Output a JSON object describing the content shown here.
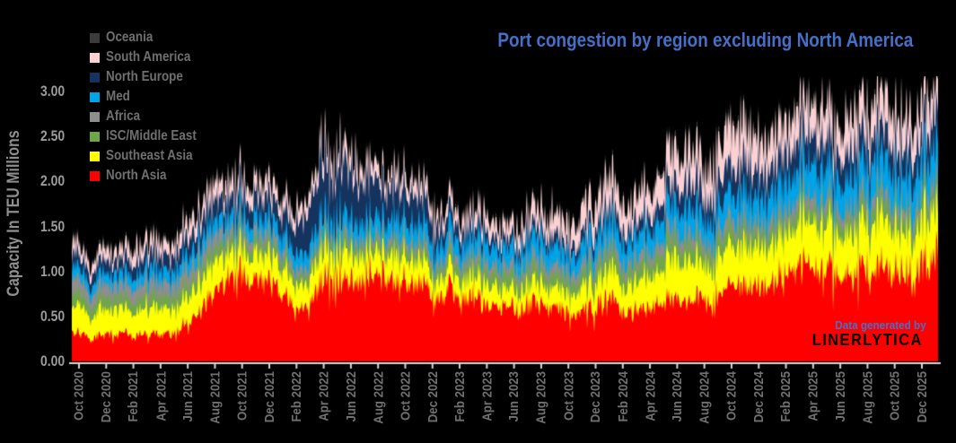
{
  "title": "Port congestion by region excluding North America",
  "watermark": {
    "line1": "Data generated by",
    "line2": "LINERLYTICA"
  },
  "y_axis": {
    "title": "Capacity In TEU Millions",
    "ticks": [
      "0.00",
      "0.50",
      "1.00",
      "1.50",
      "2.00",
      "2.50",
      "3.00"
    ],
    "tick_text_color": "#9b9b9b"
  },
  "x_axis": {
    "tick_labels": [
      "Oct 2020",
      "Dec 2020",
      "Feb 2021",
      "Apr 2021",
      "Jun 2021",
      "Aug 2021",
      "Oct 2021",
      "Dec 2021",
      "Feb 2022",
      "Apr 2022",
      "Jun 2022",
      "Aug 2022",
      "Oct 2022",
      "Dec 2022",
      "Feb 2023",
      "Apr 2023",
      "Jun 2023",
      "Aug 2023",
      "Oct 2023",
      "Dec 2023",
      "Feb 2024",
      "Apr 2024",
      "Jun 2024",
      "Aug 2024",
      "Oct 2024",
      "Dec 2024",
      "Feb 2025",
      "Apr 2025",
      "Jun 2025",
      "Aug 2025",
      "Oct 2025",
      "Dec 2025"
    ],
    "tick_text_color": "#707070",
    "axis_line_color": "#d8d8d8"
  },
  "legend": {
    "position": "top-left",
    "items": [
      {
        "label": "Oceania",
        "color": "#3c3c3c"
      },
      {
        "label": "South America",
        "color": "#fbd1d4"
      },
      {
        "label": "North Europe",
        "color": "#14335e"
      },
      {
        "label": "Med",
        "color": "#00a3e6"
      },
      {
        "label": "Africa",
        "color": "#8e8e8e"
      },
      {
        "label": "ISC/Middle East",
        "color": "#70a64a"
      },
      {
        "label": "Southeast Asia",
        "color": "#ffff00"
      },
      {
        "label": "North Asia",
        "color": "#ff0000"
      }
    ]
  },
  "colors": {
    "background": "#000000",
    "title": "#4470c8",
    "watermark_blue": "#4a6fc9",
    "watermark_black": "#000000",
    "axis_line": "#d8d8d8"
  },
  "chart_data": {
    "type": "area",
    "stacked": true,
    "title": "Port congestion by region excluding North America",
    "xlabel": "",
    "ylabel": "Capacity In TEU Millions",
    "ylim": [
      0,
      3.25
    ],
    "grid": false,
    "legend_position": "top-left",
    "stack_order": "bottom-to-top",
    "granularity": "monthly means of noisy daily observations",
    "months": [
      "Oct 2020",
      "Nov 2020",
      "Dec 2020",
      "Jan 2021",
      "Feb 2021",
      "Mar 2021",
      "Apr 2021",
      "May 2021",
      "Jun 2021",
      "Jul 2021",
      "Aug 2021",
      "Sep 2021",
      "Oct 2021",
      "Nov 2021",
      "Dec 2021",
      "Jan 2022",
      "Feb 2022",
      "Mar 2022",
      "Apr 2022",
      "May 2022",
      "Jun 2022",
      "Jul 2022",
      "Aug 2022",
      "Sep 2022",
      "Oct 2022",
      "Nov 2022",
      "Dec 2022",
      "Jan 2023",
      "Feb 2023",
      "Mar 2023",
      "Apr 2023",
      "May 2023",
      "Jun 2023",
      "Jul 2023",
      "Aug 2023",
      "Sep 2023",
      "Oct 2023",
      "Nov 2023",
      "Dec 2023",
      "Jan 2024",
      "Feb 2024",
      "Mar 2024",
      "Apr 2024",
      "May 2024",
      "Jun 2024",
      "Jul 2024",
      "Aug 2024",
      "Sep 2024",
      "Oct 2024",
      "Nov 2024",
      "Dec 2024",
      "Jan 2025",
      "Feb 2025",
      "Mar 2025",
      "Apr 2025",
      "May 2025",
      "Jun 2025",
      "Jul 2025",
      "Aug 2025",
      "Sep 2025",
      "Oct 2025",
      "Nov 2025",
      "Dec 2025"
    ],
    "series": [
      {
        "name": "North Asia",
        "color": "#ff0000",
        "values": [
          0.3,
          0.26,
          0.29,
          0.31,
          0.26,
          0.28,
          0.3,
          0.33,
          0.42,
          0.55,
          0.72,
          0.92,
          1.02,
          0.92,
          0.85,
          0.72,
          0.58,
          0.7,
          0.92,
          0.95,
          0.85,
          1.0,
          1.02,
          0.88,
          0.82,
          0.78,
          0.78,
          0.82,
          0.68,
          0.64,
          0.6,
          0.64,
          0.62,
          0.6,
          0.58,
          0.58,
          0.55,
          0.56,
          0.6,
          0.62,
          0.55,
          0.58,
          0.6,
          0.63,
          0.65,
          0.68,
          0.68,
          0.72,
          0.78,
          0.74,
          0.82,
          0.95,
          1.0,
          0.95,
          0.96,
          1.0,
          0.94,
          0.95,
          0.98,
          1.0,
          1.05,
          1.02,
          1.08
        ]
      },
      {
        "name": "Southeast Asia",
        "color": "#ffff00",
        "values": [
          0.26,
          0.24,
          0.26,
          0.27,
          0.25,
          0.27,
          0.28,
          0.29,
          0.3,
          0.3,
          0.3,
          0.3,
          0.28,
          0.28,
          0.27,
          0.28,
          0.27,
          0.3,
          0.32,
          0.3,
          0.28,
          0.28,
          0.27,
          0.25,
          0.24,
          0.23,
          0.22,
          0.22,
          0.2,
          0.2,
          0.21,
          0.21,
          0.2,
          0.21,
          0.21,
          0.22,
          0.23,
          0.25,
          0.27,
          0.3,
          0.3,
          0.33,
          0.34,
          0.37,
          0.42,
          0.44,
          0.4,
          0.4,
          0.42,
          0.4,
          0.42,
          0.44,
          0.45,
          0.44,
          0.46,
          0.48,
          0.45,
          0.46,
          0.48,
          0.5,
          0.52,
          0.46,
          0.48
        ]
      },
      {
        "name": "ISC/Middle East",
        "color": "#70a64a",
        "values": [
          0.13,
          0.12,
          0.13,
          0.13,
          0.12,
          0.13,
          0.13,
          0.14,
          0.14,
          0.14,
          0.14,
          0.13,
          0.12,
          0.12,
          0.12,
          0.11,
          0.1,
          0.11,
          0.11,
          0.11,
          0.1,
          0.11,
          0.11,
          0.11,
          0.11,
          0.11,
          0.11,
          0.12,
          0.12,
          0.13,
          0.14,
          0.15,
          0.15,
          0.15,
          0.14,
          0.14,
          0.14,
          0.15,
          0.15,
          0.16,
          0.16,
          0.17,
          0.17,
          0.17,
          0.18,
          0.18,
          0.17,
          0.17,
          0.17,
          0.16,
          0.16,
          0.16,
          0.15,
          0.15,
          0.15,
          0.16,
          0.15,
          0.15,
          0.15,
          0.16,
          0.16,
          0.15,
          0.15
        ]
      },
      {
        "name": "Africa",
        "color": "#8e8e8e",
        "values": [
          0.15,
          0.14,
          0.15,
          0.15,
          0.14,
          0.15,
          0.15,
          0.16,
          0.16,
          0.15,
          0.15,
          0.14,
          0.13,
          0.12,
          0.12,
          0.1,
          0.09,
          0.09,
          0.09,
          0.09,
          0.08,
          0.09,
          0.09,
          0.09,
          0.09,
          0.09,
          0.09,
          0.1,
          0.1,
          0.1,
          0.1,
          0.11,
          0.11,
          0.11,
          0.11,
          0.11,
          0.11,
          0.11,
          0.11,
          0.11,
          0.11,
          0.12,
          0.12,
          0.12,
          0.12,
          0.13,
          0.12,
          0.12,
          0.12,
          0.12,
          0.12,
          0.13,
          0.13,
          0.13,
          0.13,
          0.13,
          0.12,
          0.13,
          0.13,
          0.13,
          0.14,
          0.13,
          0.13
        ]
      },
      {
        "name": "Med",
        "color": "#00a3e6",
        "values": [
          0.12,
          0.11,
          0.12,
          0.13,
          0.12,
          0.13,
          0.14,
          0.14,
          0.15,
          0.15,
          0.16,
          0.16,
          0.16,
          0.16,
          0.16,
          0.17,
          0.17,
          0.19,
          0.2,
          0.2,
          0.19,
          0.2,
          0.2,
          0.2,
          0.2,
          0.19,
          0.19,
          0.19,
          0.18,
          0.18,
          0.19,
          0.2,
          0.2,
          0.2,
          0.2,
          0.2,
          0.2,
          0.21,
          0.22,
          0.23,
          0.23,
          0.24,
          0.24,
          0.25,
          0.26,
          0.27,
          0.26,
          0.26,
          0.27,
          0.27,
          0.28,
          0.3,
          0.32,
          0.32,
          0.33,
          0.34,
          0.33,
          0.34,
          0.35,
          0.36,
          0.37,
          0.35,
          0.36
        ]
      },
      {
        "name": "North Europe",
        "color": "#14335e",
        "values": [
          0.13,
          0.12,
          0.13,
          0.14,
          0.14,
          0.15,
          0.16,
          0.17,
          0.18,
          0.19,
          0.2,
          0.21,
          0.22,
          0.22,
          0.21,
          0.22,
          0.3,
          0.48,
          0.55,
          0.52,
          0.48,
          0.45,
          0.4,
          0.32,
          0.3,
          0.28,
          0.24,
          0.18,
          0.14,
          0.12,
          0.11,
          0.11,
          0.1,
          0.1,
          0.1,
          0.11,
          0.11,
          0.12,
          0.13,
          0.15,
          0.14,
          0.15,
          0.16,
          0.18,
          0.22,
          0.26,
          0.26,
          0.27,
          0.28,
          0.28,
          0.28,
          0.29,
          0.3,
          0.3,
          0.3,
          0.3,
          0.28,
          0.28,
          0.28,
          0.28,
          0.3,
          0.28,
          0.28
        ]
      },
      {
        "name": "South America",
        "color": "#fbd1d4",
        "values": [
          0.11,
          0.11,
          0.12,
          0.12,
          0.12,
          0.14,
          0.14,
          0.15,
          0.15,
          0.16,
          0.17,
          0.17,
          0.17,
          0.16,
          0.16,
          0.14,
          0.14,
          0.16,
          0.17,
          0.16,
          0.16,
          0.16,
          0.15,
          0.14,
          0.14,
          0.14,
          0.14,
          0.14,
          0.14,
          0.15,
          0.16,
          0.16,
          0.16,
          0.17,
          0.18,
          0.2,
          0.22,
          0.26,
          0.28,
          0.3,
          0.27,
          0.28,
          0.28,
          0.3,
          0.34,
          0.38,
          0.34,
          0.34,
          0.42,
          0.36,
          0.35,
          0.35,
          0.33,
          0.32,
          0.33,
          0.34,
          0.32,
          0.33,
          0.34,
          0.35,
          0.38,
          0.34,
          0.33
        ]
      },
      {
        "name": "Oceania",
        "color": "#3c3c3c",
        "values": [
          0.04,
          0.04,
          0.04,
          0.04,
          0.04,
          0.04,
          0.04,
          0.04,
          0.04,
          0.04,
          0.04,
          0.04,
          0.04,
          0.04,
          0.04,
          0.04,
          0.04,
          0.04,
          0.04,
          0.04,
          0.04,
          0.04,
          0.04,
          0.04,
          0.04,
          0.04,
          0.04,
          0.04,
          0.04,
          0.04,
          0.04,
          0.04,
          0.04,
          0.04,
          0.04,
          0.04,
          0.04,
          0.04,
          0.04,
          0.04,
          0.04,
          0.04,
          0.04,
          0.05,
          0.05,
          0.05,
          0.05,
          0.05,
          0.05,
          0.05,
          0.05,
          0.05,
          0.05,
          0.05,
          0.05,
          0.05,
          0.05,
          0.05,
          0.05,
          0.05,
          0.05,
          0.05,
          0.05
        ]
      }
    ]
  }
}
